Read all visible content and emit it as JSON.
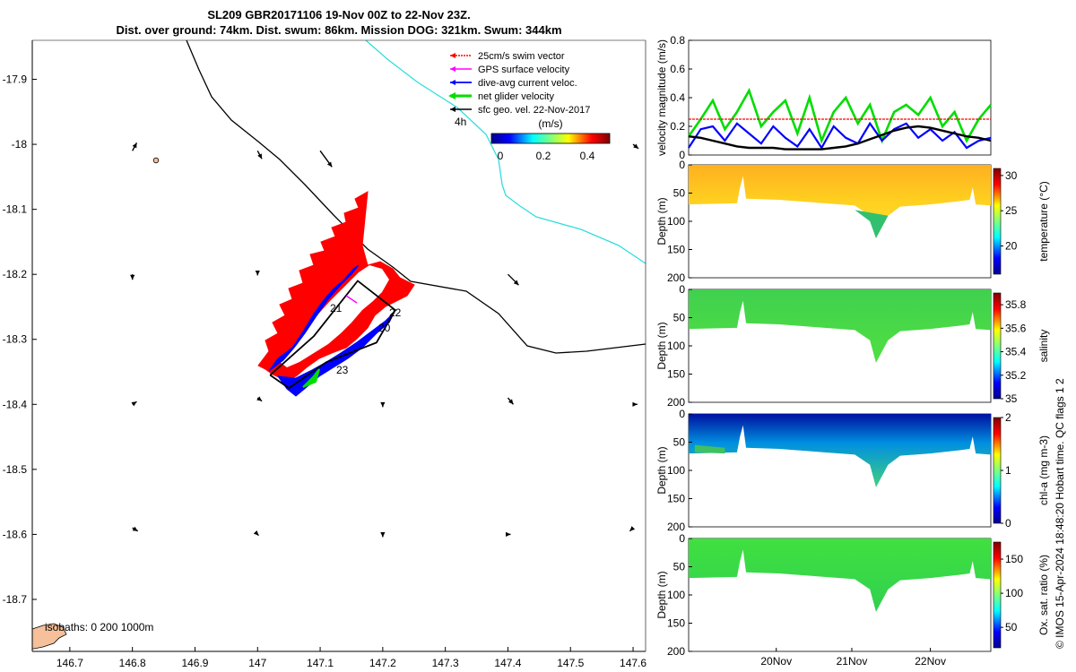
{
  "title": {
    "line1": "SL209 GBR20171106 19-Nov 00Z to 22-Nov 23Z.",
    "line2": "Dist. over ground: 74km. Dist. swum: 86km. Mission DOG: 321km. Swum: 344km"
  },
  "map": {
    "legend": [
      {
        "label": "25cm/s swim vector",
        "color": "#ff0000"
      },
      {
        "label": "GPS surface velocity",
        "color": "#ff00ff"
      },
      {
        "label": "dive-avg current veloc.",
        "color": "#0000ff"
      },
      {
        "label": "net glider velocity",
        "color": "#00dd00"
      },
      {
        "label": "sfc geo. vel. 22-Nov-2017",
        "color": "#000000"
      }
    ],
    "colorbar_title": "(m/s)",
    "colorbar_ticks": [
      "0",
      "0.2",
      "0.4"
    ],
    "note_4h": "4h",
    "isobath_label": "isobaths: 0   200  1000m",
    "day_labels": [
      "21",
      "22",
      "20",
      "23"
    ],
    "colors": {
      "glider_swim": "#ff0000",
      "glider_current": "#0000ff",
      "coast_line": "#000000",
      "isobath_200": "#33dddd",
      "land": "#f5c09a"
    }
  },
  "chart_data": [
    {
      "type": "scatter",
      "title": "SL209 GBR20171106 19-Nov 00Z to 22-Nov 23Z.",
      "xlabel": "",
      "ylabel": "",
      "x_ticks": [
        "146.7",
        "146.8",
        "146.9",
        "147",
        "147.1",
        "147.2",
        "147.3",
        "147.4",
        "147.5",
        "147.6"
      ],
      "y_ticks": [
        "-17.9",
        "-18",
        "-18.1",
        "-18.2",
        "-18.3",
        "-18.4",
        "-18.5",
        "-18.6",
        "-18.7"
      ],
      "xlim": [
        146.64,
        147.62
      ],
      "ylim": [
        -18.78,
        -17.84
      ],
      "glider_track": {
        "lon": [
          147.02,
          147.09,
          147.16,
          147.22,
          147.19,
          147.11,
          147.05,
          147.02
        ],
        "lat": [
          -18.355,
          -18.295,
          -18.21,
          -18.255,
          -18.305,
          -18.335,
          -18.375,
          -18.355
        ]
      },
      "vectors": [
        {
          "lon": 146.8,
          "lat": -18.01,
          "u": 0.08,
          "v": -0.15
        },
        {
          "lon": 147.0,
          "lat": -18.01,
          "u": 0.08,
          "v": 0.15
        },
        {
          "lon": 147.1,
          "lat": -18.01,
          "u": 0.22,
          "v": 0.3
        },
        {
          "lon": 147.6,
          "lat": -18.0,
          "u": 0.1,
          "v": 0.08
        },
        {
          "lon": 146.8,
          "lat": -18.2,
          "u": 0.0,
          "v": 0.1
        },
        {
          "lon": 147.0,
          "lat": -18.2,
          "u": 0.0,
          "v": 0.02
        },
        {
          "lon": 147.4,
          "lat": -18.2,
          "u": 0.2,
          "v": 0.2
        },
        {
          "lon": 147.4,
          "lat": -18.39,
          "u": 0.1,
          "v": 0.12
        },
        {
          "lon": 146.8,
          "lat": -18.4,
          "u": 0.08,
          "v": -0.05
        },
        {
          "lon": 147.0,
          "lat": -18.39,
          "u": 0.08,
          "v": 0.06
        },
        {
          "lon": 147.2,
          "lat": -18.4,
          "u": 0.0,
          "v": 0.05
        },
        {
          "lon": 147.6,
          "lat": -18.4,
          "u": 0.08,
          "v": 0.0
        },
        {
          "lon": 146.8,
          "lat": -18.59,
          "u": 0.1,
          "v": 0.06
        },
        {
          "lon": 147.0,
          "lat": -18.6,
          "u": 0.02,
          "v": 0.02
        },
        {
          "lon": 147.2,
          "lat": -18.6,
          "u": 0.0,
          "v": 0.05
        },
        {
          "lon": 147.4,
          "lat": -18.6,
          "u": 0.05,
          "v": 0.0
        },
        {
          "lon": 147.6,
          "lat": -18.59,
          "u": -0.06,
          "v": 0.06
        }
      ]
    },
    {
      "type": "line",
      "xlabel": "",
      "ylabel": "velocity magnitude (m/s)",
      "ylim": [
        0,
        0.8
      ],
      "y_ticks": [
        "0",
        "0.2",
        "0.4",
        "0.6",
        "0.8"
      ],
      "series": [
        {
          "values": [
            0.13,
            0.25,
            0.38,
            0.18,
            0.3,
            0.45,
            0.2,
            0.3,
            0.38,
            0.15,
            0.4,
            0.1,
            0.3,
            0.4,
            0.22,
            0.35,
            0.1,
            0.3,
            0.35,
            0.28,
            0.4,
            0.2,
            0.3,
            0.1,
            0.25,
            0.35
          ]
        },
        {
          "values": [
            0.05,
            0.18,
            0.2,
            0.1,
            0.22,
            0.15,
            0.08,
            0.2,
            0.12,
            0.06,
            0.18,
            0.05,
            0.2,
            0.12,
            0.08,
            0.22,
            0.1,
            0.18,
            0.22,
            0.12,
            0.18,
            0.1,
            0.16,
            0.05,
            0.1,
            0.12
          ]
        },
        {
          "values": [
            0.25,
            0.25,
            0.25,
            0.25,
            0.25,
            0.25,
            0.25,
            0.25,
            0.25,
            0.25,
            0.25,
            0.25,
            0.25,
            0.25,
            0.25,
            0.25,
            0.25,
            0.25,
            0.25,
            0.25,
            0.25,
            0.25,
            0.25,
            0.25,
            0.25,
            0.25
          ]
        },
        {
          "values": [
            0.13,
            0.12,
            0.1,
            0.08,
            0.06,
            0.05,
            0.05,
            0.05,
            0.04,
            0.04,
            0.04,
            0.04,
            0.05,
            0.06,
            0.08,
            0.11,
            0.14,
            0.17,
            0.19,
            0.2,
            0.19,
            0.17,
            0.15,
            0.13,
            0.12,
            0.1
          ]
        }
      ]
    },
    {
      "type": "heatmap",
      "ylabel": "Depth (m)",
      "ylim": [
        200,
        0
      ],
      "y_ticks": [
        "0",
        "50",
        "100",
        "150",
        "200"
      ],
      "colorbar_label": "temperature (°C)",
      "colorbar_ticks": [
        "20",
        "25",
        "30"
      ],
      "clim": [
        16,
        31
      ]
    },
    {
      "type": "heatmap",
      "ylabel": "Depth (m)",
      "ylim": [
        200,
        0
      ],
      "y_ticks": [
        "0",
        "50",
        "100",
        "150",
        "200"
      ],
      "colorbar_label": "salinity",
      "colorbar_ticks": [
        "35",
        "35.2",
        "35.4",
        "35.6",
        "35.8"
      ],
      "clim": [
        35,
        35.9
      ]
    },
    {
      "type": "heatmap",
      "ylabel": "Depth (m)",
      "ylim": [
        200,
        0
      ],
      "y_ticks": [
        "0",
        "50",
        "100",
        "150",
        "200"
      ],
      "colorbar_label": "chl-a (mg m-3)",
      "colorbar_ticks": [
        "0",
        "1",
        "2"
      ],
      "clim": [
        0,
        2
      ]
    },
    {
      "type": "heatmap",
      "ylabel": "Depth (m)",
      "ylim": [
        200,
        0
      ],
      "y_ticks": [
        "0",
        "50",
        "100",
        "150",
        "200"
      ],
      "xlabel": "",
      "x_ticks": [
        "20Nov",
        "21Nov",
        "22Nov"
      ],
      "colorbar_label": "Ox. sat. ratio (%)",
      "colorbar_ticks": [
        "50",
        "100",
        "150"
      ],
      "clim": [
        20,
        175
      ]
    }
  ],
  "side_note": "© IMOS 15-Apr-2024 18:48:20 Hobart time. QC flags 1  2"
}
